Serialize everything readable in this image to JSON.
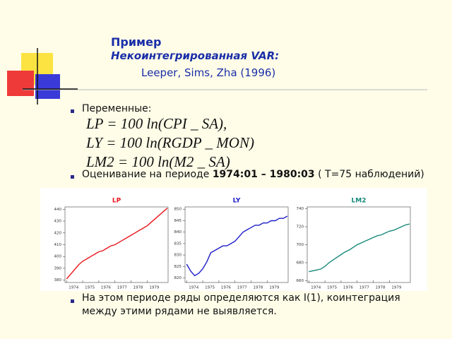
{
  "header": {
    "title": "Пример",
    "subtitle": "Некоинтегрированная VAR:",
    "reference": "Leeper, Sims, Zha (1996)"
  },
  "bullets": [
    {
      "text": "Переменные:"
    },
    {
      "text": "Оценивание на периоде ",
      "bold": "1974:01 – 1980:03",
      "tail": "  ( T=75 наблюдений)"
    },
    {
      "text": "На этом периоде ряды определяются как I(1), коинтеграция между этими рядами не выявляется."
    }
  ],
  "formulas": [
    "LP = 100 ln(CPI _ SA),",
    "LY = 100 ln(RGDP _ MON)",
    "LM2 = 100 ln(M2 _ SA)"
  ],
  "chart_data": [
    {
      "type": "line",
      "title": "LP",
      "color": "#e8151b",
      "xlim": [
        1973.9,
        1980.3
      ],
      "xticks": [
        1974,
        1975,
        1976,
        1977,
        1978,
        1979
      ],
      "ylim": [
        378,
        442
      ],
      "yticks": [
        380,
        390,
        400,
        410,
        420,
        430,
        440
      ],
      "x": [
        1974,
        1974.25,
        1974.5,
        1974.75,
        1975,
        1975.25,
        1975.5,
        1975.75,
        1976,
        1976.25,
        1976.5,
        1976.75,
        1977,
        1977.25,
        1977.5,
        1977.75,
        1978,
        1978.25,
        1978.5,
        1978.75,
        1979,
        1979.25,
        1979.5,
        1979.75,
        1980,
        1980.25
      ],
      "values": [
        381,
        385,
        389,
        393,
        396,
        398,
        400,
        402,
        404,
        405,
        407,
        409,
        410,
        412,
        414,
        416,
        418,
        420,
        422,
        424,
        426,
        429,
        432,
        435,
        438,
        441
      ]
    },
    {
      "type": "line",
      "title": "LY",
      "color": "#1c1cc8",
      "xlim": [
        1973.9,
        1980.3
      ],
      "xticks": [
        1974,
        1975,
        1976,
        1977,
        1978,
        1979
      ],
      "ylim": [
        818,
        851
      ],
      "yticks": [
        820,
        825,
        830,
        835,
        840,
        845,
        850
      ],
      "x": [
        1974,
        1974.25,
        1974.5,
        1974.75,
        1975,
        1975.25,
        1975.5,
        1975.75,
        1976,
        1976.25,
        1976.5,
        1976.75,
        1977,
        1977.25,
        1977.5,
        1977.75,
        1978,
        1978.25,
        1978.5,
        1978.75,
        1979,
        1979.25,
        1979.5,
        1979.75,
        1980,
        1980.25
      ],
      "values": [
        826,
        823,
        821,
        822,
        824,
        827,
        831,
        832,
        833,
        834,
        834,
        835,
        836,
        838,
        840,
        841,
        842,
        843,
        843,
        844,
        844,
        845,
        845,
        846,
        846,
        847
      ]
    },
    {
      "type": "line",
      "title": "LM2",
      "color": "#15897a",
      "xlim": [
        1973.9,
        1980.3
      ],
      "xticks": [
        1974,
        1975,
        1976,
        1977,
        1978,
        1979
      ],
      "ylim": [
        658,
        742
      ],
      "yticks": [
        660,
        680,
        700,
        720,
        740
      ],
      "x": [
        1974,
        1974.25,
        1974.5,
        1974.75,
        1975,
        1975.25,
        1975.5,
        1975.75,
        1976,
        1976.25,
        1976.5,
        1976.75,
        1977,
        1977.25,
        1977.5,
        1977.75,
        1978,
        1978.25,
        1978.5,
        1978.75,
        1979,
        1979.25,
        1979.5,
        1979.75,
        1980,
        1980.25
      ],
      "values": [
        670,
        671,
        672,
        673,
        676,
        680,
        683,
        686,
        689,
        692,
        694,
        697,
        700,
        702,
        704,
        706,
        708,
        710,
        711,
        713,
        715,
        716,
        718,
        720,
        722,
        723
      ]
    }
  ]
}
